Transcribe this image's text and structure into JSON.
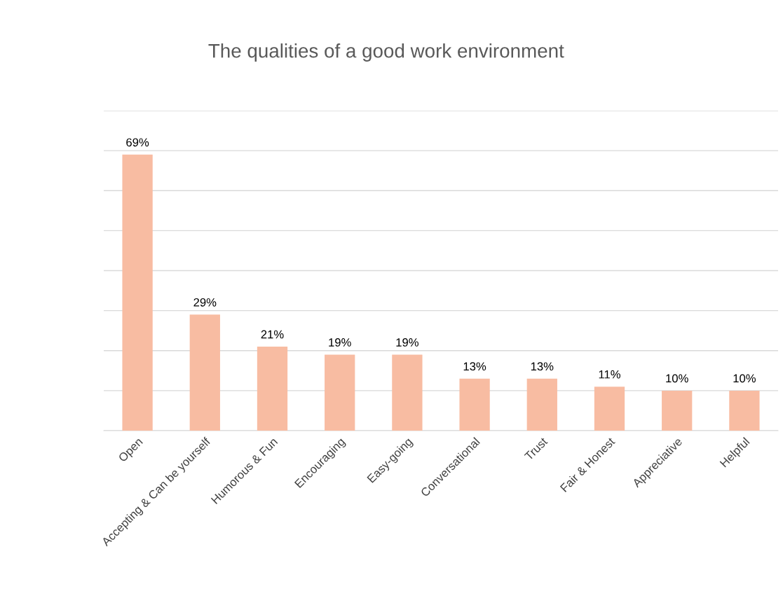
{
  "chart_data": {
    "type": "bar",
    "title": "The qualities of a good work environment",
    "categories": [
      "Open",
      "Accepting & Can be yourself",
      "Humorous & Fun",
      "Encouraging",
      "Easy-going",
      "Conversational",
      "Trust",
      "Fair & Honest",
      "Appreciative",
      "Helpful"
    ],
    "values": [
      69,
      29,
      21,
      19,
      19,
      13,
      13,
      11,
      10,
      10
    ],
    "value_labels": [
      "69%",
      "29%",
      "21%",
      "19%",
      "19%",
      "13%",
      "13%",
      "11%",
      "10%",
      "10%"
    ],
    "color": "#f8bca2",
    "ylim": [
      0,
      80
    ],
    "yticks": [
      {
        "value": 0,
        "label": null
      },
      {
        "value": 10,
        "label": null
      },
      {
        "value": 20,
        "label": null
      },
      {
        "value": 30,
        "label": null
      },
      {
        "value": 40,
        "label": null
      },
      {
        "value": 50,
        "label": null
      },
      {
        "value": 60,
        "label": null
      },
      {
        "value": 70,
        "label": null
      },
      {
        "value": 80,
        "label": null
      }
    ],
    "tick_labels": "x",
    "grid": "y",
    "legend": false
  }
}
